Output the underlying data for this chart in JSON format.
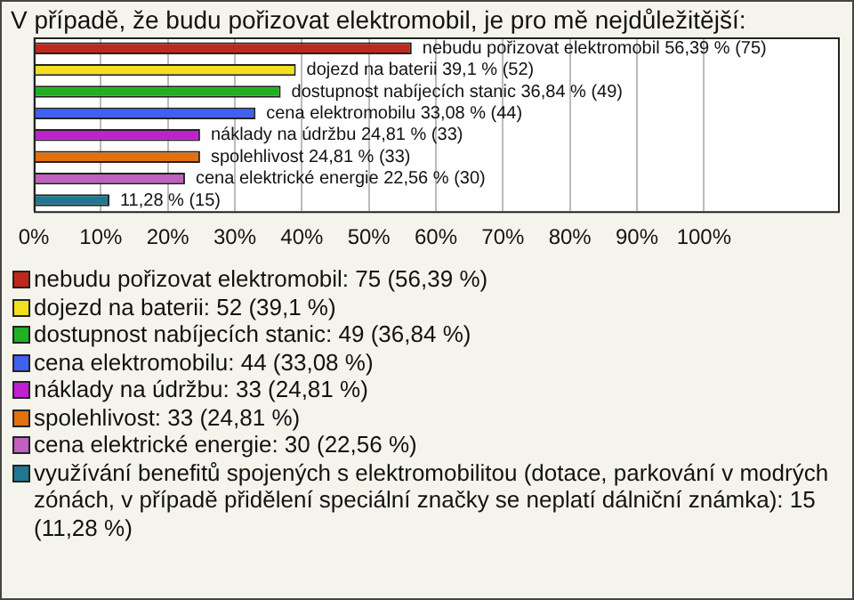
{
  "chart_data": {
    "type": "bar",
    "orientation": "horizontal",
    "title": "V případě, že budu pořizovat elektromobil, je pro mě nejdůležitější:",
    "categories": [
      null,
      null,
      null,
      null,
      null,
      null,
      null,
      null
    ],
    "values": [
      56.39,
      39.1,
      36.84,
      33.08,
      24.81,
      24.81,
      22.56,
      11.28
    ],
    "colors": [
      "#c0281c",
      "#f0e020",
      "#20b020",
      "#4060f0",
      "#c020d0",
      "#e07010",
      "#c060c0",
      "#207890"
    ],
    "value_labels": [
      "nebudu pořizovat elektromobil 56,39 % (75)",
      "dojezd na baterii 39,1 % (52)",
      "dostupnost nabíjecích stanic 36,84 % (49)",
      "cena elektromobilu 33,08 % (44)",
      "náklady na údržbu 24,81 % (33)",
      "spolehlivost 24,81 % (33)",
      "cena elektrické energie 22,56 % (30)",
      "11,28 % (15)"
    ],
    "xlim": [
      0,
      120
    ],
    "xticks": [
      {
        "value": 0,
        "label": "0%"
      },
      {
        "value": 10,
        "label": "10%"
      },
      {
        "value": 20,
        "label": "20%"
      },
      {
        "value": 30,
        "label": "30%"
      },
      {
        "value": 40,
        "label": "40%"
      },
      {
        "value": 50,
        "label": "50%"
      },
      {
        "value": 60,
        "label": "60%"
      },
      {
        "value": 70,
        "label": "70%"
      },
      {
        "value": 80,
        "label": "80%"
      },
      {
        "value": 90,
        "label": "90%"
      },
      {
        "value": 100,
        "label": "100%"
      }
    ],
    "grid": "x",
    "tick_labels": "x",
    "annotations": [
      "nebudu pořizovat elektromobil: 75 (56,39 %)",
      "dojezd na baterii: 52 (39,1 %)",
      "dostupnost nabíjecích stanic: 49 (36,84 %)",
      "cena elektromobilu: 44 (33,08 %)",
      "náklady na údržbu: 33 (24,81 %)",
      "spolehlivost: 33 (24,81 %)",
      "cena elektrické energie: 30 (22,56 %)",
      "využívání benefitů spojených s elektromobilitou (dotace, parkování v modrých zónách, v případě přidělení speciální značky se neplatí dálniční známka): 15 (11,28 %)"
    ]
  }
}
